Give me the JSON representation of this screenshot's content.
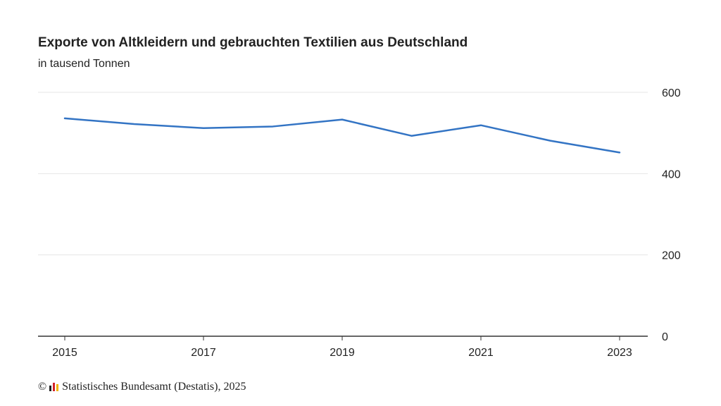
{
  "title": "Exporte von Altkleidern und gebrauchten Textilien aus Deutschland",
  "subtitle": "in tausend Tonnen",
  "source": {
    "copyright": "©",
    "text": "Statistisches Bundesamt (Destatis), 2025",
    "logo_icon": "destatis-logo-icon"
  },
  "colors": {
    "line": "#3374c4",
    "grid": "#e6e6e6",
    "axis": "#333333"
  },
  "chart_data": {
    "type": "line",
    "title": "Exporte von Altkleidern und gebrauchten Textilien aus Deutschland",
    "subtitle": "in tausend Tonnen",
    "x": [
      2015,
      2016,
      2017,
      2018,
      2019,
      2020,
      2021,
      2022,
      2023
    ],
    "x_tick_labels": [
      "2015",
      "2017",
      "2019",
      "2021",
      "2023"
    ],
    "series": [
      {
        "values": [
          536,
          522,
          512,
          516,
          533,
          493,
          519,
          481,
          452
        ]
      }
    ],
    "ylim": [
      0,
      600
    ],
    "y_ticks": [
      0,
      200,
      400,
      600
    ],
    "y_axis_position": "right",
    "grid": true,
    "legend": "none"
  }
}
